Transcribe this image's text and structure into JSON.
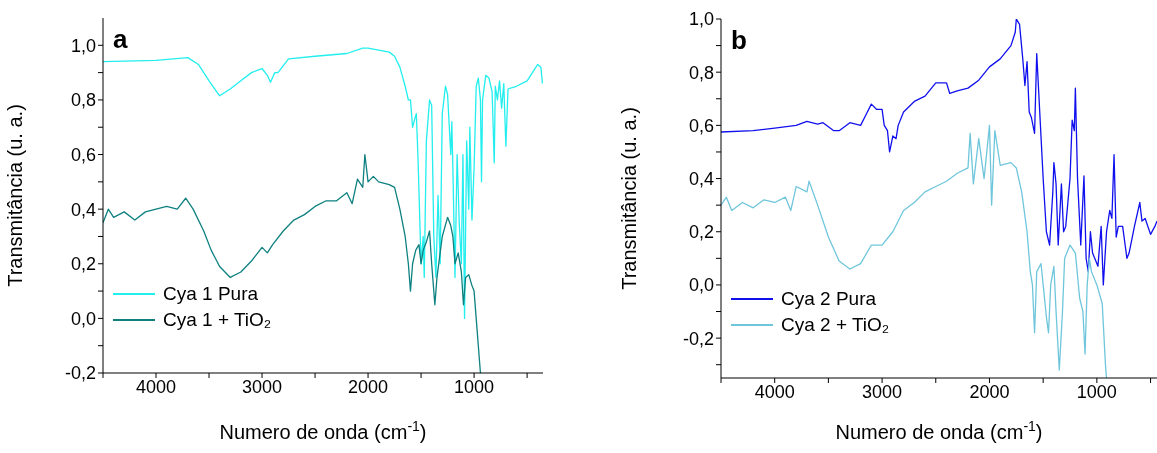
{
  "chart_data": [
    {
      "type": "line",
      "xlabel": "Numero de onda (cm$^{-1}$)",
      "ylabel": "Transmitância (u. a.)",
      "annotations": [
        "a"
      ],
      "legend": "bottom left",
      "marker": "none",
      "line_style": "solid",
      "xlim": [
        4500,
        350
      ],
      "xticks": [
        {
          "value": 4500,
          "label": null
        },
        4000,
        {
          "value": 3500,
          "label": null
        },
        3000,
        {
          "value": 2500,
          "label": null
        },
        2000,
        {
          "value": 1500,
          "label": null
        },
        1000,
        {
          "value": 500,
          "label": null
        }
      ],
      "ylim": [
        -0.2,
        1.1
      ],
      "yticks": [
        {
          "value": -0.2,
          "label": "-0,2"
        },
        {
          "value": -0.1,
          "label": null
        },
        {
          "value": 0,
          "label": "0,0"
        },
        {
          "value": 0.1,
          "label": null
        },
        {
          "value": 0.2,
          "label": "0,2"
        },
        {
          "value": 0.3,
          "label": null
        },
        {
          "value": 0.4,
          "label": "0,4"
        },
        {
          "value": 0.5,
          "label": null
        },
        {
          "value": 0.6,
          "label": "0,6"
        },
        {
          "value": 0.7,
          "label": null
        },
        {
          "value": 0.8,
          "label": "0,8"
        },
        {
          "value": 0.9,
          "label": null
        },
        {
          "value": 1.0,
          "label": "1,0"
        }
      ],
      "series": [
        {
          "name": "Cya 1 Pura",
          "color": "#22eeee",
          "x": [
            4500,
            4000,
            3700,
            3600,
            3500,
            3400,
            3300,
            3200,
            3100,
            3000,
            2950,
            2920,
            2880,
            2850,
            2750,
            2500,
            2200,
            2050,
            2000,
            1800,
            1750,
            1700,
            1650,
            1620,
            1600,
            1580,
            1560,
            1545,
            1530,
            1500,
            1480,
            1470,
            1450,
            1420,
            1400,
            1380,
            1360,
            1340,
            1320,
            1300,
            1270,
            1250,
            1220,
            1210,
            1200,
            1180,
            1160,
            1140,
            1120,
            1105,
            1090,
            1070,
            1050,
            1040,
            1020,
            1000,
            980,
            960,
            940,
            930,
            920,
            890,
            860,
            830,
            810,
            800,
            780,
            760,
            740,
            720,
            700,
            680,
            600,
            500,
            450,
            400,
            370,
            355
          ],
          "values": [
            0.94,
            0.945,
            0.955,
            0.93,
            0.87,
            0.815,
            0.84,
            0.87,
            0.9,
            0.915,
            0.89,
            0.865,
            0.9,
            0.9,
            0.95,
            0.96,
            0.97,
            0.99,
            0.99,
            0.975,
            0.96,
            0.92,
            0.85,
            0.8,
            0.8,
            0.7,
            0.73,
            0.75,
            0.6,
            0.2,
            0.3,
            0.15,
            0.65,
            0.8,
            0.78,
            0.3,
            0.15,
            0.45,
            0.2,
            0.75,
            0.85,
            0.82,
            0.6,
            0.72,
            0.55,
            0.15,
            0.6,
            0.35,
            0.2,
            0.6,
            0.0,
            0.65,
            0.4,
            0.7,
            0.36,
            0.55,
            0.85,
            0.88,
            0.8,
            0.5,
            0.8,
            0.89,
            0.88,
            0.83,
            0.57,
            0.85,
            0.8,
            0.87,
            0.77,
            0.86,
            0.63,
            0.84,
            0.85,
            0.87,
            0.9,
            0.93,
            0.92,
            0.86
          ]
        },
        {
          "name": "Cya 1 + TiO₂",
          "color": "#0e8080",
          "x": [
            4500,
            4450,
            4400,
            4300,
            4200,
            4100,
            4000,
            3900,
            3800,
            3720,
            3650,
            3550,
            3480,
            3400,
            3300,
            3200,
            3100,
            3000,
            2950,
            2900,
            2800,
            2700,
            2600,
            2500,
            2400,
            2300,
            2200,
            2150,
            2100,
            2050,
            2030,
            2000,
            1950,
            1900,
            1800,
            1750,
            1700,
            1650,
            1620,
            1600,
            1580,
            1550,
            1520,
            1500,
            1480,
            1450,
            1420,
            1400,
            1370,
            1350,
            1300,
            1250,
            1220,
            1200,
            1180,
            1150,
            1120,
            1100,
            1080,
            1050,
            1020,
            1000,
            980,
            960,
            940
          ],
          "values": [
            0.35,
            0.4,
            0.37,
            0.39,
            0.36,
            0.39,
            0.4,
            0.41,
            0.4,
            0.44,
            0.4,
            0.32,
            0.25,
            0.19,
            0.15,
            0.17,
            0.21,
            0.26,
            0.24,
            0.27,
            0.32,
            0.36,
            0.38,
            0.41,
            0.43,
            0.43,
            0.46,
            0.42,
            0.51,
            0.48,
            0.6,
            0.5,
            0.52,
            0.5,
            0.49,
            0.48,
            0.4,
            0.3,
            0.2,
            0.1,
            0.2,
            0.25,
            0.27,
            0.2,
            0.25,
            0.28,
            0.32,
            0.2,
            0.05,
            0.15,
            0.3,
            0.37,
            0.34,
            0.3,
            0.2,
            0.24,
            0.17,
            0.05,
            0.15,
            0.16,
            0.12,
            0.1,
            0.0,
            -0.1,
            -0.2
          ]
        }
      ]
    },
    {
      "type": "line",
      "xlabel": "Numero de onda (cm$^{-1}$)",
      "ylabel": "Transmitância (u. a.)",
      "annotations": [
        "b"
      ],
      "legend": "bottom left",
      "marker": "none",
      "line_style": "solid",
      "xlim": [
        4500,
        440
      ],
      "xticks": [
        {
          "value": 4500,
          "label": null
        },
        4000,
        {
          "value": 3500,
          "label": null
        },
        3000,
        {
          "value": 2500,
          "label": null
        },
        2000,
        {
          "value": 1500,
          "label": null
        },
        1000,
        {
          "value": 500,
          "label": null
        }
      ],
      "ylim": [
        -0.35,
        1.0
      ],
      "yticks": [
        {
          "value": -0.3,
          "label": null
        },
        {
          "value": -0.2,
          "label": "-0,2"
        },
        {
          "value": -0.1,
          "label": null
        },
        {
          "value": 0,
          "label": "0,0"
        },
        {
          "value": 0.1,
          "label": null
        },
        {
          "value": 0.2,
          "label": "0,2"
        },
        {
          "value": 0.3,
          "label": null
        },
        {
          "value": 0.4,
          "label": "0,4"
        },
        {
          "value": 0.5,
          "label": null
        },
        {
          "value": 0.6,
          "label": "0,6"
        },
        {
          "value": 0.7,
          "label": null
        },
        {
          "value": 0.8,
          "label": "0,8"
        },
        {
          "value": 0.9,
          "label": null
        },
        {
          "value": 1.0,
          "label": "1,0"
        }
      ],
      "series": [
        {
          "name": "Cya 2 Pura",
          "color": "#1010ee",
          "x": [
            4500,
            4200,
            4000,
            3800,
            3700,
            3600,
            3550,
            3450,
            3400,
            3300,
            3200,
            3150,
            3100,
            3050,
            3000,
            2980,
            2950,
            2930,
            2900,
            2870,
            2850,
            2800,
            2700,
            2600,
            2500,
            2400,
            2370,
            2300,
            2200,
            2100,
            2000,
            1900,
            1800,
            1760,
            1750,
            1720,
            1690,
            1670,
            1650,
            1630,
            1610,
            1580,
            1560,
            1500,
            1470,
            1440,
            1410,
            1400,
            1380,
            1360,
            1330,
            1310,
            1290,
            1250,
            1230,
            1210,
            1200,
            1180,
            1150,
            1120,
            1100,
            1080,
            1060,
            1040,
            1020,
            990,
            960,
            940,
            910,
            880,
            860,
            840,
            820,
            800,
            760,
            720,
            700,
            650,
            600,
            580,
            550,
            500,
            460,
            440
          ],
          "values": [
            0.575,
            0.58,
            0.59,
            0.6,
            0.615,
            0.605,
            0.61,
            0.58,
            0.58,
            0.61,
            0.6,
            0.64,
            0.68,
            0.66,
            0.66,
            0.6,
            0.58,
            0.5,
            0.56,
            0.55,
            0.6,
            0.65,
            0.69,
            0.71,
            0.76,
            0.76,
            0.72,
            0.73,
            0.74,
            0.77,
            0.82,
            0.85,
            0.9,
            0.95,
            1.0,
            0.98,
            0.85,
            0.75,
            0.84,
            0.65,
            0.63,
            0.57,
            0.87,
            0.4,
            0.2,
            0.15,
            0.35,
            0.46,
            0.38,
            0.15,
            0.38,
            0.2,
            0.22,
            0.4,
            0.62,
            0.58,
            0.74,
            0.4,
            0.15,
            0.41,
            0.1,
            0.05,
            0.2,
            0.12,
            0.1,
            0.07,
            0.22,
            0.0,
            0.2,
            0.28,
            0.25,
            0.49,
            0.18,
            0.22,
            0.22,
            0.1,
            0.12,
            0.22,
            0.31,
            0.24,
            0.25,
            0.19,
            0.22,
            0.24
          ]
        },
        {
          "name": "Cya 2 + TiO₂",
          "color": "#6fc6dc",
          "x": [
            4500,
            4450,
            4400,
            4300,
            4200,
            4100,
            4000,
            3900,
            3850,
            3800,
            3700,
            3680,
            3600,
            3500,
            3400,
            3300,
            3200,
            3100,
            3000,
            2900,
            2800,
            2700,
            2600,
            2500,
            2400,
            2300,
            2200,
            2180,
            2150,
            2100,
            2050,
            2000,
            1980,
            1950,
            1900,
            1800,
            1750,
            1700,
            1650,
            1620,
            1600,
            1580,
            1560,
            1520,
            1500,
            1470,
            1450,
            1430,
            1400,
            1380,
            1350,
            1320,
            1300,
            1250,
            1200,
            1160,
            1130,
            1110,
            1090,
            1070,
            1050,
            1000,
            950,
            920,
            910
          ],
          "values": [
            0.3,
            0.33,
            0.28,
            0.31,
            0.29,
            0.32,
            0.31,
            0.33,
            0.28,
            0.37,
            0.35,
            0.39,
            0.3,
            0.18,
            0.09,
            0.06,
            0.08,
            0.15,
            0.15,
            0.2,
            0.28,
            0.31,
            0.35,
            0.37,
            0.39,
            0.42,
            0.44,
            0.57,
            0.38,
            0.55,
            0.4,
            0.6,
            0.3,
            0.58,
            0.45,
            0.46,
            0.44,
            0.35,
            0.2,
            0.05,
            0.0,
            -0.18,
            0.05,
            0.08,
            0.0,
            -0.12,
            -0.18,
            0.0,
            0.07,
            -0.1,
            -0.32,
            -0.1,
            0.1,
            0.15,
            0.12,
            -0.05,
            -0.1,
            -0.26,
            0.0,
            0.1,
            0.05,
            0.0,
            -0.07,
            -0.3,
            -0.35
          ]
        }
      ]
    }
  ]
}
